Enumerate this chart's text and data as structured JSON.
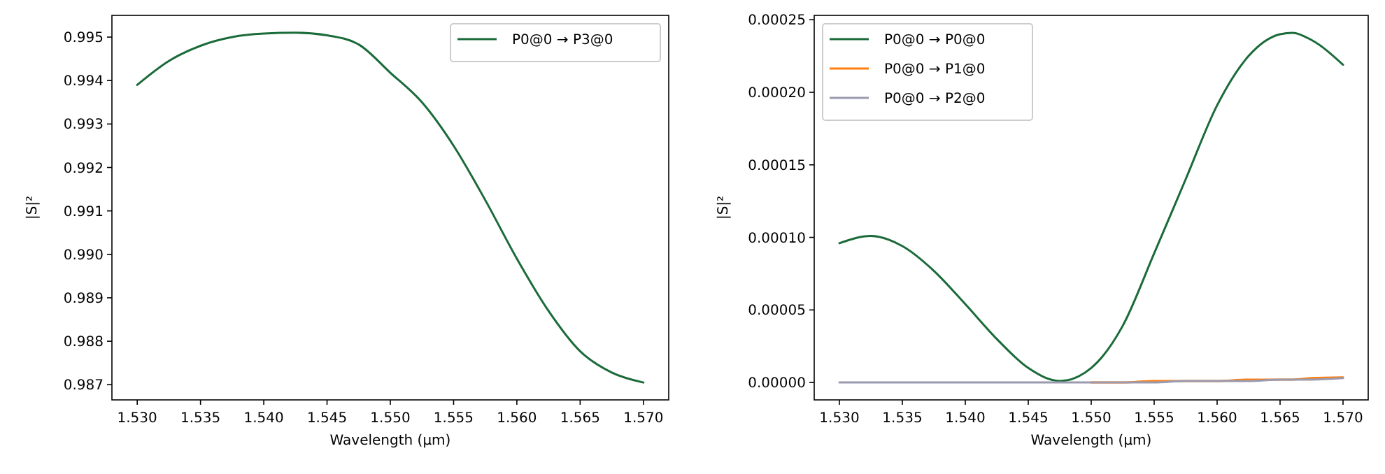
{
  "chart_data": [
    {
      "type": "line",
      "xlabel": "Wavelength (µm)",
      "ylabel": "|S|²",
      "legend": "top right",
      "grid": false,
      "xlim": [
        1.528,
        1.572
      ],
      "ylim": [
        0.98665,
        0.9955
      ],
      "xticks": [
        {
          "value": 1.53,
          "label": "1.530"
        },
        {
          "value": 1.535,
          "label": "1.535"
        },
        {
          "value": 1.54,
          "label": "1.540"
        },
        {
          "value": 1.545,
          "label": "1.545"
        },
        {
          "value": 1.55,
          "label": "1.550"
        },
        {
          "value": 1.555,
          "label": "1.555"
        },
        {
          "value": 1.56,
          "label": "1.560"
        },
        {
          "value": 1.565,
          "label": "1.565"
        },
        {
          "value": 1.57,
          "label": "1.570"
        }
      ],
      "yticks": [
        0.987,
        0.988,
        0.989,
        {
          "value": 0.99,
          "label": "0.990"
        },
        0.991,
        0.992,
        0.993,
        0.994,
        0.995
      ],
      "x": [
        1.53,
        1.5325,
        1.535,
        1.5375,
        1.54,
        1.5425,
        1.545,
        1.5475,
        1.55,
        1.5525,
        1.555,
        1.5575,
        1.56,
        1.5625,
        1.565,
        1.5675,
        1.57
      ],
      "series": [
        {
          "name": "P0@0 → P3@0",
          "color": "#1b6b3a",
          "values": [
            0.9939,
            0.99445,
            0.9948,
            0.995,
            0.99508,
            0.9951,
            0.99504,
            0.99483,
            0.99418,
            0.9935,
            0.9925,
            0.99125,
            0.9899,
            0.9887,
            0.98777,
            0.98728,
            0.98705
          ]
        }
      ]
    },
    {
      "type": "line",
      "xlabel": "Wavelength (µm)",
      "ylabel": "|S|²",
      "legend": "top left",
      "grid": false,
      "xlim": [
        1.528,
        1.572
      ],
      "ylim": [
        -1.2e-05,
        0.000253
      ],
      "xticks": [
        {
          "value": 1.53,
          "label": "1.530"
        },
        {
          "value": 1.535,
          "label": "1.535"
        },
        {
          "value": 1.54,
          "label": "1.540"
        },
        {
          "value": 1.545,
          "label": "1.545"
        },
        {
          "value": 1.55,
          "label": "1.550"
        },
        {
          "value": 1.555,
          "label": "1.555"
        },
        {
          "value": 1.56,
          "label": "1.560"
        },
        {
          "value": 1.565,
          "label": "1.565"
        },
        {
          "value": 1.57,
          "label": "1.570"
        }
      ],
      "yticks": [
        {
          "value": 0,
          "label": "0.00000"
        },
        {
          "value": 5e-05,
          "label": "0.00005"
        },
        {
          "value": 0.0001,
          "label": "0.00010"
        },
        {
          "value": 0.00015,
          "label": "0.00015"
        },
        {
          "value": 0.0002,
          "label": "0.00020"
        },
        {
          "value": 0.00025,
          "label": "0.00025"
        }
      ],
      "x": [
        1.53,
        1.5325,
        1.535,
        1.5375,
        1.54,
        1.5425,
        1.545,
        1.5475,
        1.55,
        1.5525,
        1.555,
        1.5575,
        1.56,
        1.5625,
        1.565,
        1.566,
        1.5675,
        1.57
      ],
      "series": [
        {
          "name": "P0@0 → P0@0",
          "color": "#1b6b3a",
          "values": [
            9.6e-05,
            0.000101,
            9.4e-05,
            7.7e-05,
            5.4e-05,
            3e-05,
            1e-05,
            1e-06,
            1e-05,
            3.9e-05,
            8.9e-05,
            0.00014,
            0.000191,
            0.000225,
            0.00024,
            0.000241,
            0.000236,
            0.000219
          ]
        },
        {
          "name": "P0@0 → P1@0",
          "color": "#ff7f0e",
          "values": [
            null,
            null,
            null,
            null,
            null,
            null,
            null,
            null,
            0,
            0,
            1e-06,
            1e-06,
            1e-06,
            2e-06,
            2e-06,
            2e-06,
            3e-06,
            3.5e-06
          ]
        },
        {
          "name": "P0@0 → P2@0",
          "color": "#9a9ab0",
          "values": [
            0,
            0,
            0,
            0,
            0,
            0,
            0,
            0,
            0,
            0,
            0,
            1e-06,
            1e-06,
            1e-06,
            2e-06,
            2e-06,
            2e-06,
            3e-06
          ]
        }
      ]
    }
  ]
}
